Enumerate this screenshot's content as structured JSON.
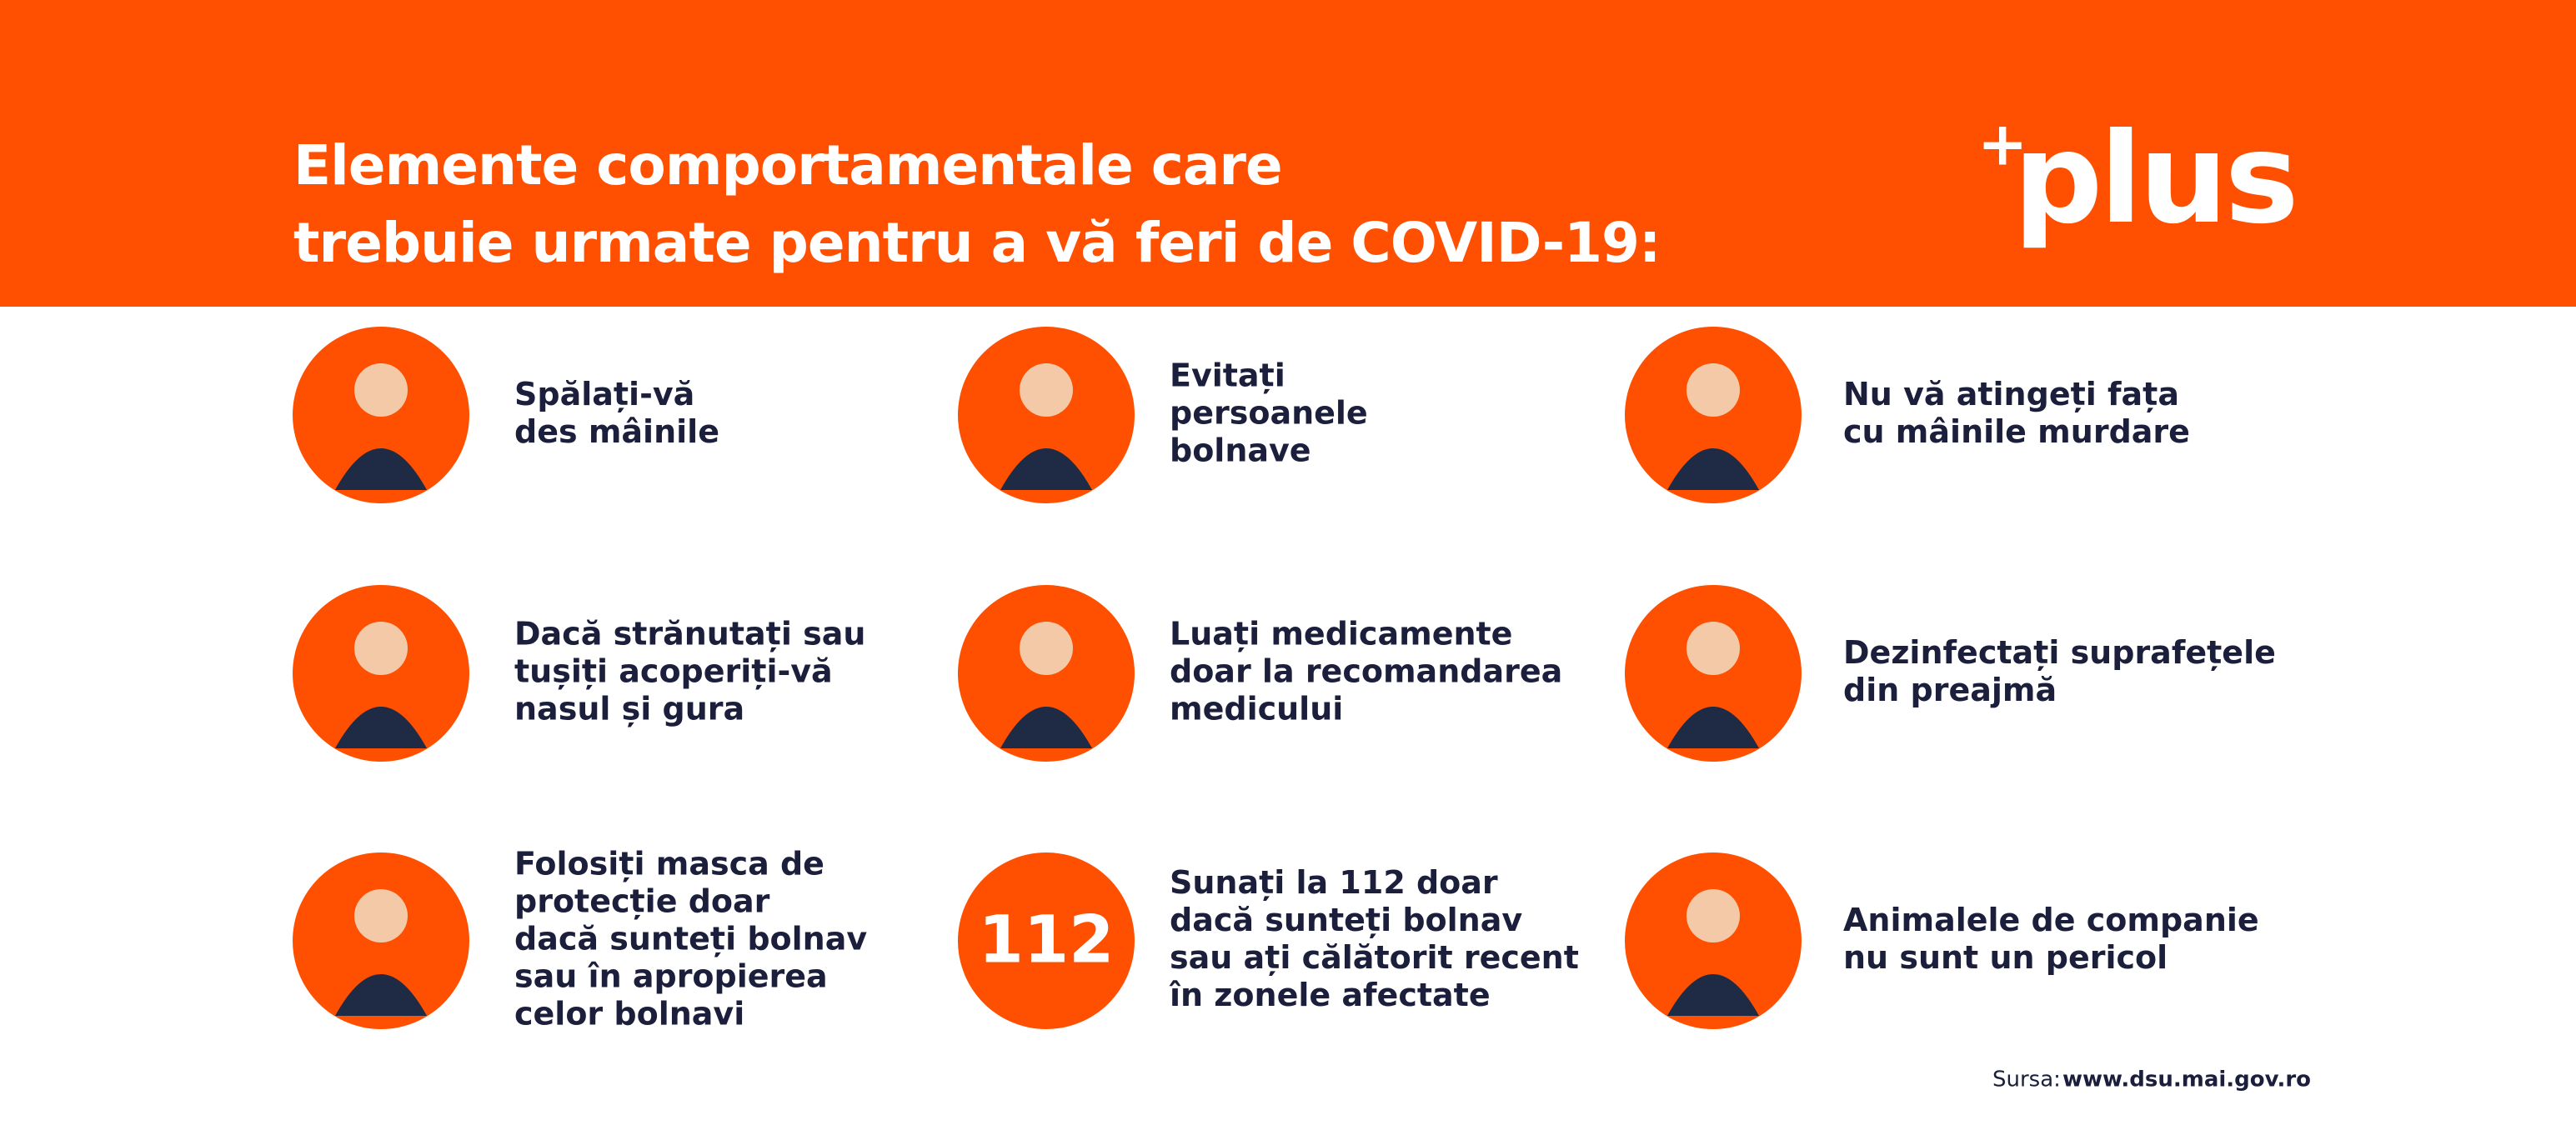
{
  "header": {
    "title_lines": [
      "Elemente comportamentale care",
      "trebuie urmate pentru a vă feri de COVID-19:"
    ],
    "logo_plus": "+",
    "logo_text": "plus"
  },
  "items": [
    {
      "lines": [
        "Spălați-vă",
        "des mâinile"
      ]
    },
    {
      "lines": [
        "Evitați",
        "persoanele",
        "bolnave"
      ]
    },
    {
      "lines": [
        "Nu vă atingeți fața",
        "cu mâinile murdare"
      ]
    },
    {
      "lines": [
        "Dacă strănutați sau",
        "tușiți acoperiți-vă",
        "nasul și gura"
      ]
    },
    {
      "lines": [
        "Luați medicamente",
        "doar la recomandarea",
        "medicului"
      ]
    },
    {
      "lines": [
        "Dezinfectați suprafețele",
        "din preajmă"
      ]
    },
    {
      "lines": [
        "Folosiți masca de",
        "protecție doar",
        "dacă sunteți bolnav",
        "sau în apropierea",
        "celor bolnavi"
      ]
    },
    {
      "badge": "112",
      "lines": [
        "Sunați la 112 doar",
        "dacă sunteți bolnav",
        "sau ați călătorit recent",
        "în zonele afectate"
      ]
    },
    {
      "lines": [
        "Animalele de companie",
        "nu sunt un pericol"
      ]
    }
  ],
  "footer": {
    "source_label": "Sursa:",
    "source_url": "www.dsu.mai.gov.ro"
  }
}
